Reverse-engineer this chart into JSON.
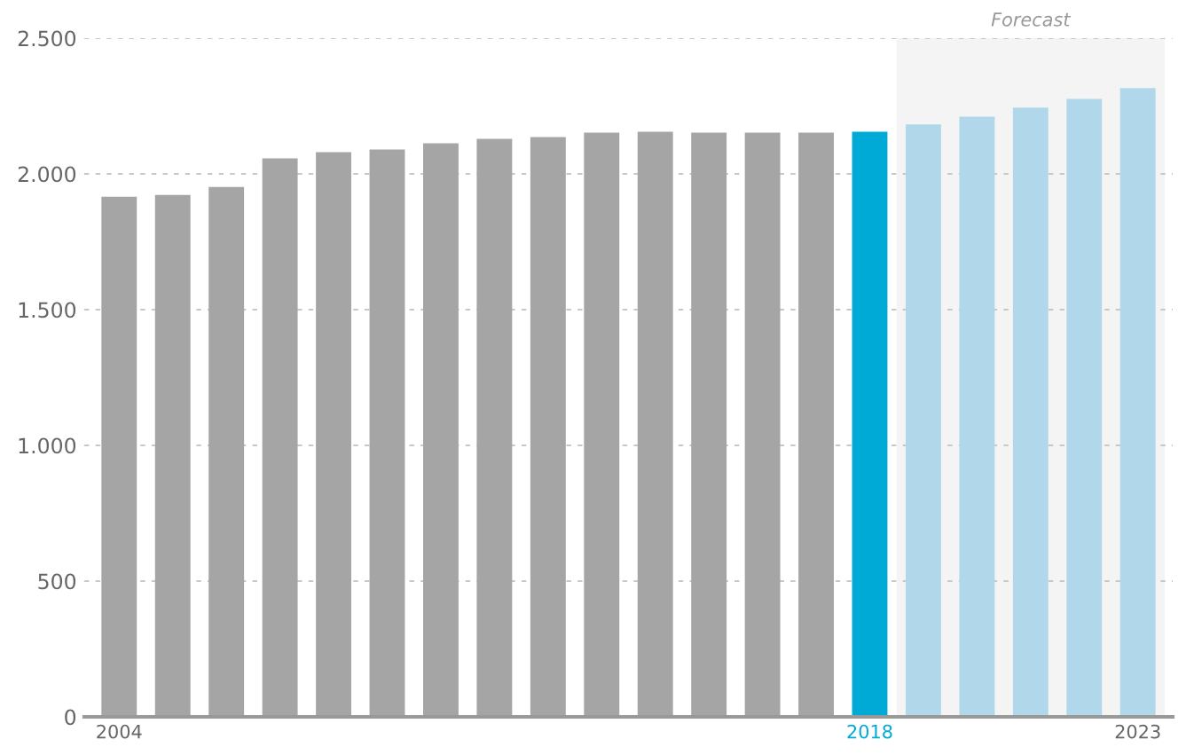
{
  "chart_data": {
    "type": "bar",
    "categories": [
      "2004",
      null,
      null,
      null,
      null,
      null,
      null,
      null,
      null,
      null,
      null,
      null,
      null,
      null,
      "2018",
      null,
      null,
      null,
      null,
      "2023"
    ],
    "values": [
      1916,
      1922,
      1952,
      2057,
      2080,
      2090,
      2113,
      2129,
      2136,
      2152,
      2155,
      2152,
      2152,
      2152,
      2155,
      2182,
      2211,
      2244,
      2276,
      2316
    ],
    "colors": [
      "#a5a5a6",
      "#a5a5a6",
      "#a5a5a6",
      "#a5a5a6",
      "#a5a5a6",
      "#a5a5a6",
      "#a5a5a6",
      "#a5a5a6",
      "#a5a5a6",
      "#a5a5a6",
      "#a5a5a6",
      "#a5a5a6",
      "#a5a5a6",
      "#a5a5a6",
      "#00aad7",
      "#b1d8ea",
      "#b1d8ea",
      "#b1d8ea",
      "#b1d8ea",
      "#b1d8ea"
    ],
    "ylim": [
      0,
      2500
    ],
    "yticks": [
      0,
      500,
      {
        "value": 1000,
        "label": "1.000"
      },
      {
        "value": 1500,
        "label": "1.500"
      },
      {
        "value": 2000,
        "label": "2.000"
      },
      {
        "value": 2500,
        "label": "2.500"
      }
    ],
    "annotations": [
      "Forecast"
    ],
    "grid": "y"
  }
}
